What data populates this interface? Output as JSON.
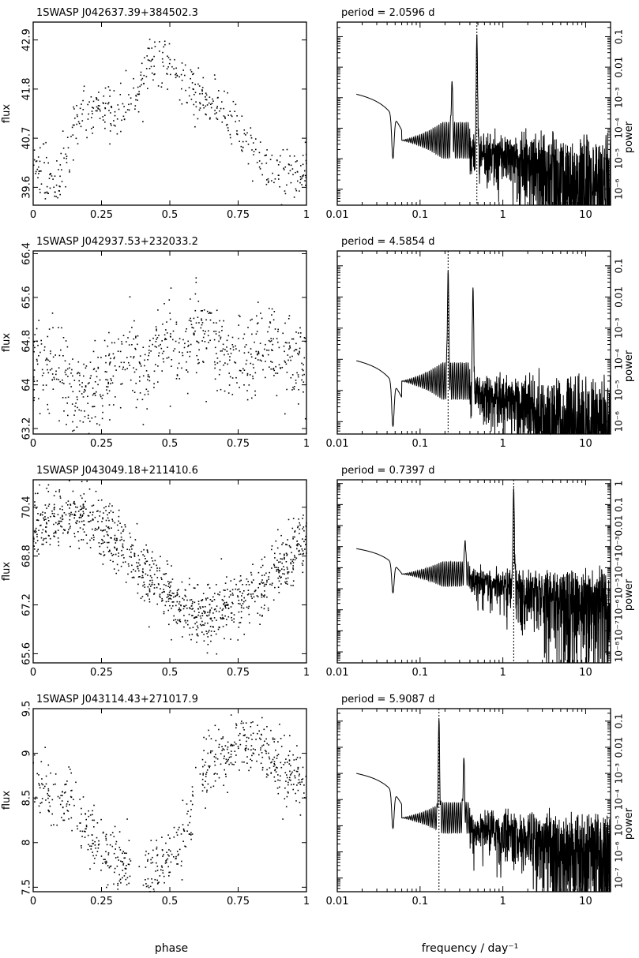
{
  "chart_data": [
    {
      "type": "scatter",
      "title": "1SWASP J042637.39+384502.3",
      "xlabel": "phase",
      "ylabel": "flux",
      "xlim": [
        0,
        1
      ],
      "ylim": [
        39.2,
        43.3
      ],
      "xticks": [
        "0",
        "0.25",
        "0.5",
        "0.75",
        "1"
      ],
      "yticks": [
        "39.6",
        "40.7",
        "41.8",
        "42.9"
      ],
      "ytick_values": [
        39.6,
        40.7,
        41.8,
        42.9
      ],
      "curve": {
        "x": [
          0.0,
          0.05,
          0.1,
          0.15,
          0.2,
          0.25,
          0.3,
          0.35,
          0.4,
          0.45,
          0.5,
          0.55,
          0.6,
          0.65,
          0.7,
          0.75,
          0.8,
          0.85,
          0.9,
          0.95,
          1.0
        ],
        "y": [
          40.2,
          39.9,
          39.7,
          41.0,
          41.3,
          41.4,
          41.3,
          41.4,
          42.0,
          42.5,
          42.3,
          41.9,
          41.7,
          41.5,
          41.3,
          41.0,
          40.4,
          40.1,
          40.0,
          39.9,
          40.1
        ]
      },
      "scatter": 0.28,
      "n_points": 480
    },
    {
      "type": "line",
      "subtitle": "period =    2.0596  d",
      "xlabel": "",
      "ylabel": "power",
      "xscale": "log",
      "yscale": "log",
      "xlim": [
        0.01,
        20
      ],
      "ylim": [
        3e-07,
        0.3
      ],
      "xticks": [
        "0.01",
        "0.1",
        "1",
        "10"
      ],
      "yticks": [
        "10⁻⁶",
        "10⁻⁵",
        "10⁻⁴",
        "10⁻³",
        "0.01",
        "0.1"
      ],
      "ytick_values": [
        1e-06,
        1e-05,
        0.0001,
        0.001,
        0.01,
        0.1
      ],
      "period_freq": 0.4855,
      "low_freq_power": 0.0013,
      "peak_power": 0.12,
      "second_peak": {
        "freq": 0.243,
        "power": 0.0035
      },
      "noise_level": 4e-05
    },
    {
      "type": "scatter",
      "title": "1SWASP J042937.53+232033.2",
      "xlabel": "phase",
      "ylabel": "flux",
      "xlim": [
        0,
        1
      ],
      "ylim": [
        63.1,
        66.45
      ],
      "xticks": [
        "0",
        "0.25",
        "0.5",
        "0.75",
        "1"
      ],
      "yticks": [
        "63.2",
        "64",
        "64.8",
        "65.6",
        "66.4"
      ],
      "ytick_values": [
        63.2,
        64.0,
        64.8,
        65.6,
        66.4
      ],
      "curve": {
        "x": [
          0.0,
          0.05,
          0.1,
          0.15,
          0.2,
          0.25,
          0.3,
          0.35,
          0.4,
          0.45,
          0.5,
          0.55,
          0.6,
          0.65,
          0.7,
          0.75,
          0.8,
          0.85,
          0.9,
          0.95,
          1.0
        ],
        "y": [
          64.3,
          64.4,
          64.2,
          63.8,
          63.7,
          64.0,
          64.4,
          64.6,
          64.3,
          64.8,
          65.0,
          64.6,
          64.9,
          65.0,
          64.6,
          64.4,
          64.6,
          64.8,
          64.6,
          64.5,
          64.3
        ]
      },
      "scatter": 0.42,
      "n_points": 700
    },
    {
      "type": "line",
      "subtitle": "period =    4.5854  d",
      "xlabel": "",
      "ylabel": "power",
      "xscale": "log",
      "yscale": "log",
      "xlim": [
        0.01,
        20
      ],
      "ylim": [
        4e-07,
        0.3
      ],
      "xticks": [
        "0.01",
        "0.1",
        "1",
        "10"
      ],
      "yticks": [
        "10⁻⁶",
        "10⁻⁵",
        "10⁻⁴",
        "10⁻³",
        "0.01",
        "0.1"
      ],
      "ytick_values": [
        1e-06,
        1e-05,
        0.0001,
        0.001,
        0.01,
        0.1
      ],
      "period_freq": 0.2181,
      "low_freq_power": 9e-05,
      "peak_power": 0.07,
      "second_peak": {
        "freq": 0.436,
        "power": 0.02
      },
      "noise_level": 2e-05
    },
    {
      "type": "scatter",
      "title": "1SWASP J043049.18+211410.6",
      "xlabel": "phase",
      "ylabel": "flux",
      "xlim": [
        0,
        1
      ],
      "ylim": [
        65.3,
        71.3
      ],
      "xticks": [
        "0",
        "0.25",
        "0.5",
        "0.75",
        "1"
      ],
      "yticks": [
        "65.6",
        "67.2",
        "68.8",
        "70.4"
      ],
      "ytick_values": [
        65.6,
        67.2,
        68.8,
        70.4
      ],
      "curve": {
        "x": [
          0.0,
          0.05,
          0.1,
          0.15,
          0.2,
          0.25,
          0.3,
          0.35,
          0.4,
          0.45,
          0.5,
          0.55,
          0.6,
          0.65,
          0.7,
          0.75,
          0.8,
          0.85,
          0.9,
          0.95,
          1.0
        ],
        "y": [
          69.6,
          69.9,
          70.1,
          70.2,
          70.1,
          69.7,
          69.3,
          68.9,
          68.4,
          67.9,
          67.4,
          67.1,
          66.9,
          66.9,
          67.0,
          67.2,
          67.5,
          67.9,
          68.4,
          69.0,
          69.5
        ]
      },
      "scatter": 0.5,
      "n_points": 1000
    },
    {
      "type": "line",
      "subtitle": "period =    0.7397  d",
      "xlabel": "",
      "ylabel": "power",
      "xscale": "log",
      "yscale": "log",
      "xlim": [
        0.01,
        20
      ],
      "ylim": [
        3e-09,
        1.5
      ],
      "xticks": [
        "0.01",
        "0.1",
        "1",
        "10"
      ],
      "yticks": [
        "10⁻⁸",
        "10⁻⁷",
        "10⁻⁶",
        "10⁻⁵",
        "10⁻⁴",
        "10⁻³",
        "0.01",
        "0.1",
        "1"
      ],
      "ytick_values": [
        1e-08,
        1e-07,
        1e-06,
        1e-05,
        0.0001,
        0.001,
        0.01,
        0.1,
        1
      ],
      "period_freq": 1.3519,
      "low_freq_power": 0.0008,
      "peak_power": 0.6,
      "second_peak": {
        "freq": 0.35,
        "power": 0.002
      },
      "noise_level": 5e-05
    },
    {
      "type": "scatter",
      "title": "1SWASP J043114.43+271017.9",
      "xlabel": "phase",
      "ylabel": "flux",
      "xlim": [
        0,
        1
      ],
      "ylim": [
        7.45,
        9.5
      ],
      "xticks": [
        "0",
        "0.25",
        "0.5",
        "0.75",
        "1"
      ],
      "yticks": [
        "7.5",
        "8",
        "8.5",
        "9",
        "9.5"
      ],
      "ytick_values": [
        7.5,
        8.0,
        8.5,
        9.0,
        9.5
      ],
      "curve": {
        "x": [
          0.0,
          0.05,
          0.1,
          0.15,
          0.2,
          0.25,
          0.3,
          0.35,
          0.4,
          0.45,
          0.5,
          0.55,
          0.6,
          0.65,
          0.7,
          0.75,
          0.8,
          0.85,
          0.9,
          0.95,
          1.0
        ],
        "y": [
          8.6,
          8.6,
          8.5,
          8.4,
          8.15,
          7.95,
          7.8,
          7.65,
          7.6,
          7.75,
          7.85,
          8.0,
          8.6,
          8.95,
          9.0,
          9.1,
          9.15,
          9.0,
          8.85,
          8.7,
          8.6
        ]
      },
      "scatter": 0.18,
      "n_points": 650
    },
    {
      "type": "line",
      "subtitle": "period =    5.9087  d",
      "xlabel": "frequency / day⁻¹",
      "ylabel": "power",
      "xscale": "log",
      "yscale": "log",
      "xlim": [
        0.01,
        20
      ],
      "ylim": [
        3e-08,
        0.3
      ],
      "xticks": [
        "0.01",
        "0.1",
        "1",
        "10"
      ],
      "yticks": [
        "10⁻⁷",
        "10⁻⁶",
        "10⁻⁵",
        "10⁻⁴",
        "10⁻³",
        "0.01",
        "0.1"
      ],
      "ytick_values": [
        1e-07,
        1e-06,
        1e-05,
        0.0001,
        0.001,
        0.01,
        0.1
      ],
      "period_freq": 0.1692,
      "low_freq_power": 0.001,
      "peak_power": 0.12,
      "second_peak": {
        "freq": 0.338,
        "power": 0.004
      },
      "noise_level": 2e-05
    }
  ]
}
